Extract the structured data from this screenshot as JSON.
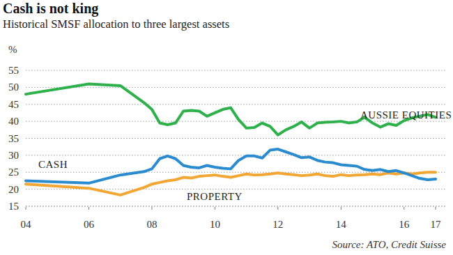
{
  "chart_data": {
    "type": "line",
    "title": "Cash is not king",
    "subtitle": "Historical SMSF allocation to three largest assets",
    "y_label": "%",
    "source": "Source: ATO, Credit Suisse",
    "x": [
      2004,
      2006,
      2007,
      2007.75,
      2008,
      2008.25,
      2008.5,
      2008.75,
      2009,
      2009.25,
      2009.5,
      2009.75,
      2010,
      2010.25,
      2010.5,
      2010.75,
      2011,
      2011.25,
      2011.5,
      2011.75,
      2012,
      2012.25,
      2012.5,
      2012.75,
      2013,
      2013.25,
      2013.5,
      2013.75,
      2014,
      2014.25,
      2014.5,
      2014.75,
      2015,
      2015.25,
      2015.5,
      2015.75,
      2016,
      2016.25,
      2016.5,
      2016.75,
      2017
    ],
    "series": [
      {
        "name": "AUSSIE EQUITIES",
        "color": "#2eb04b",
        "values": [
          48,
          51,
          50.5,
          45.5,
          43.5,
          39.5,
          39,
          39.5,
          43,
          43.2,
          43,
          41.5,
          42.5,
          43.5,
          44,
          40.5,
          38,
          38.2,
          39.5,
          38.5,
          36,
          37.5,
          38.5,
          39.8,
          38,
          39.5,
          39.7,
          39.8,
          40,
          39.5,
          39.8,
          41.2,
          39.5,
          38.3,
          39.3,
          38.8,
          40.2,
          41,
          41.5,
          42,
          41.2
        ]
      },
      {
        "name": "CASH",
        "color": "#2a8ccf",
        "values": [
          22.5,
          21.8,
          24.2,
          25.2,
          26,
          29,
          29.8,
          29,
          27,
          26.5,
          26.3,
          27,
          26.5,
          26.2,
          26,
          28.5,
          29.8,
          29.8,
          29.2,
          31.5,
          31.8,
          31,
          30.2,
          29.3,
          29.5,
          28.5,
          28,
          27.8,
          27.2,
          27,
          26.8,
          25.8,
          25.5,
          25.8,
          25.2,
          25.5,
          24.8,
          24,
          23.2,
          22.8,
          23
        ]
      },
      {
        "name": "PROPERTY",
        "color": "#f2a633",
        "values": [
          21.5,
          20.3,
          18.3,
          20.5,
          21.5,
          22,
          22.5,
          22.8,
          23.5,
          23.3,
          23.8,
          24,
          24.2,
          23.8,
          23.5,
          24,
          24.5,
          24.2,
          24.3,
          24.5,
          24.8,
          24.5,
          24.3,
          24,
          24.2,
          24.5,
          24,
          23.8,
          24.3,
          24,
          24.2,
          24.3,
          24.5,
          24.3,
          24.8,
          24.5,
          24.8,
          24.5,
          24.8,
          25,
          25
        ]
      }
    ],
    "xlim": [
      2004,
      2017
    ],
    "xticks": [
      {
        "value": 2004,
        "label": "04"
      },
      {
        "value": 2006,
        "label": "06"
      },
      {
        "value": 2008,
        "label": "08"
      },
      {
        "value": 2010,
        "label": "10"
      },
      {
        "value": 2012,
        "label": "12"
      },
      {
        "value": 2014,
        "label": "14"
      },
      {
        "value": 2016,
        "label": "16"
      },
      {
        "value": 2017,
        "label": "17"
      }
    ],
    "ylim": [
      15,
      55
    ],
    "yticks": [
      15,
      20,
      25,
      30,
      35,
      40,
      45,
      50,
      55
    ],
    "grid": true
  }
}
